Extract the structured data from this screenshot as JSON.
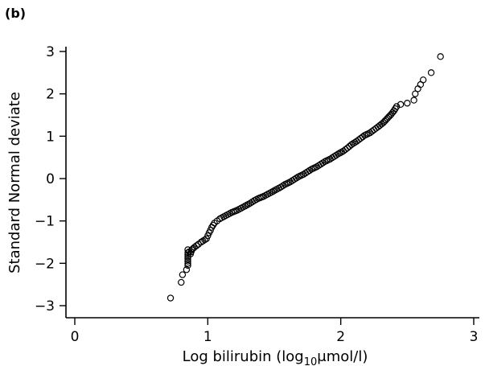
{
  "panel_label": "(b)",
  "chart_data": {
    "type": "scatter",
    "xlabel_main": "Log bilirubin (log",
    "xlabel_sub": "10",
    "xlabel_tail": "μmol/l)",
    "ylabel": "Standard Normal deviate",
    "xlim": [
      0,
      3
    ],
    "ylim": [
      -3,
      3
    ],
    "x_ticks": [
      0,
      1,
      2,
      3
    ],
    "y_ticks": [
      -3,
      -2,
      -1,
      0,
      1,
      2,
      3
    ],
    "grid": false,
    "marker": "open-circle",
    "points": [
      [
        0.72,
        -2.82
      ],
      [
        0.8,
        -2.45
      ],
      [
        0.81,
        -2.27
      ],
      [
        0.84,
        -2.15
      ],
      [
        0.85,
        -2.05
      ],
      [
        0.85,
        -1.95
      ],
      [
        0.85,
        -1.85
      ],
      [
        0.85,
        -1.75
      ],
      [
        0.85,
        -1.68
      ],
      [
        0.87,
        -1.78
      ],
      [
        0.88,
        -1.68
      ],
      [
        0.9,
        -1.62
      ],
      [
        0.93,
        -1.55
      ],
      [
        0.95,
        -1.5
      ],
      [
        0.99,
        -1.42
      ],
      [
        1.0,
        -1.35
      ],
      [
        1.01,
        -1.28
      ],
      [
        1.02,
        -1.22
      ],
      [
        1.03,
        -1.15
      ],
      [
        1.04,
        -1.1
      ],
      [
        1.05,
        -1.05
      ],
      [
        1.07,
        -1.0
      ],
      [
        1.09,
        -0.95
      ],
      [
        1.12,
        -0.9
      ],
      [
        1.15,
        -0.85
      ],
      [
        1.18,
        -0.8
      ],
      [
        1.22,
        -0.75
      ],
      [
        1.25,
        -0.7
      ],
      [
        1.28,
        -0.65
      ],
      [
        1.32,
        -0.58
      ],
      [
        1.35,
        -0.52
      ],
      [
        1.38,
        -0.47
      ],
      [
        1.42,
        -0.42
      ],
      [
        1.45,
        -0.37
      ],
      [
        1.48,
        -0.32
      ],
      [
        1.52,
        -0.25
      ],
      [
        1.55,
        -0.2
      ],
      [
        1.58,
        -0.14
      ],
      [
        1.62,
        -0.08
      ],
      [
        1.65,
        -0.02
      ],
      [
        1.68,
        0.04
      ],
      [
        1.72,
        0.1
      ],
      [
        1.75,
        0.16
      ],
      [
        1.78,
        0.22
      ],
      [
        1.82,
        0.28
      ],
      [
        1.85,
        0.34
      ],
      [
        1.88,
        0.4
      ],
      [
        1.92,
        0.46
      ],
      [
        1.95,
        0.52
      ],
      [
        1.98,
        0.58
      ],
      [
        2.02,
        0.65
      ],
      [
        2.05,
        0.72
      ],
      [
        2.08,
        0.8
      ],
      [
        2.12,
        0.88
      ],
      [
        2.15,
        0.95
      ],
      [
        2.18,
        1.02
      ],
      [
        2.22,
        1.08
      ],
      [
        2.25,
        1.15
      ],
      [
        2.28,
        1.22
      ],
      [
        2.32,
        1.32
      ],
      [
        2.35,
        1.42
      ],
      [
        2.38,
        1.52
      ],
      [
        2.4,
        1.6
      ],
      [
        2.42,
        1.7
      ],
      [
        2.45,
        1.75
      ],
      [
        2.5,
        1.78
      ],
      [
        2.55,
        1.85
      ],
      [
        2.56,
        2.0
      ],
      [
        2.58,
        2.12
      ],
      [
        2.6,
        2.22
      ],
      [
        2.62,
        2.33
      ],
      [
        2.68,
        2.5
      ],
      [
        2.75,
        2.88
      ]
    ]
  }
}
